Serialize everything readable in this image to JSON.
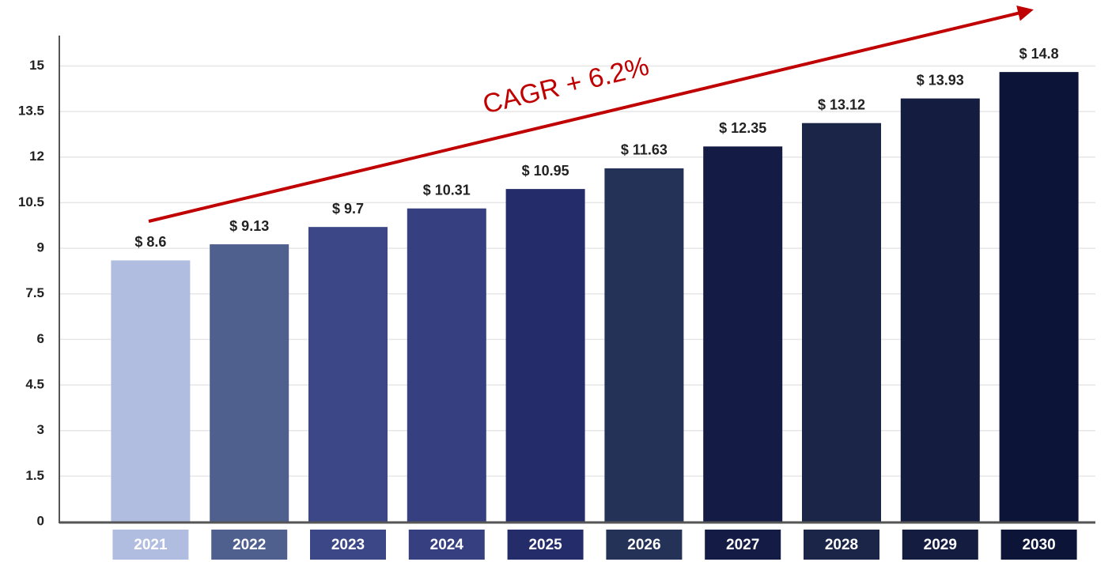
{
  "chart_data": {
    "type": "bar",
    "annotation": "CAGR + 6.2%",
    "categories": [
      "2021",
      "2022",
      "2023",
      "2024",
      "2025",
      "2026",
      "2027",
      "2028",
      "2029",
      "2030"
    ],
    "values": [
      8.6,
      9.13,
      9.7,
      10.31,
      10.95,
      11.63,
      12.35,
      13.12,
      13.93,
      14.8
    ],
    "value_labels": [
      "$ 8.6",
      "$ 9.13",
      "$ 9.7",
      "$ 10.31",
      "$ 10.95",
      "$ 11.63",
      "$ 12.35",
      "$ 13.12",
      "$ 13.93",
      "$ 14.8"
    ],
    "colors": [
      "#b0bde0",
      "#4f5f8e",
      "#3c4787",
      "#363f80",
      "#252c6a",
      "#243258",
      "#141b44",
      "#1a2548",
      "#141c40",
      "#0c1538"
    ],
    "ylim": [
      0,
      16
    ],
    "yticks": [
      0,
      1.5,
      3,
      4.5,
      6,
      7.5,
      9,
      10.5,
      12,
      13.5,
      15
    ],
    "grid": true
  }
}
